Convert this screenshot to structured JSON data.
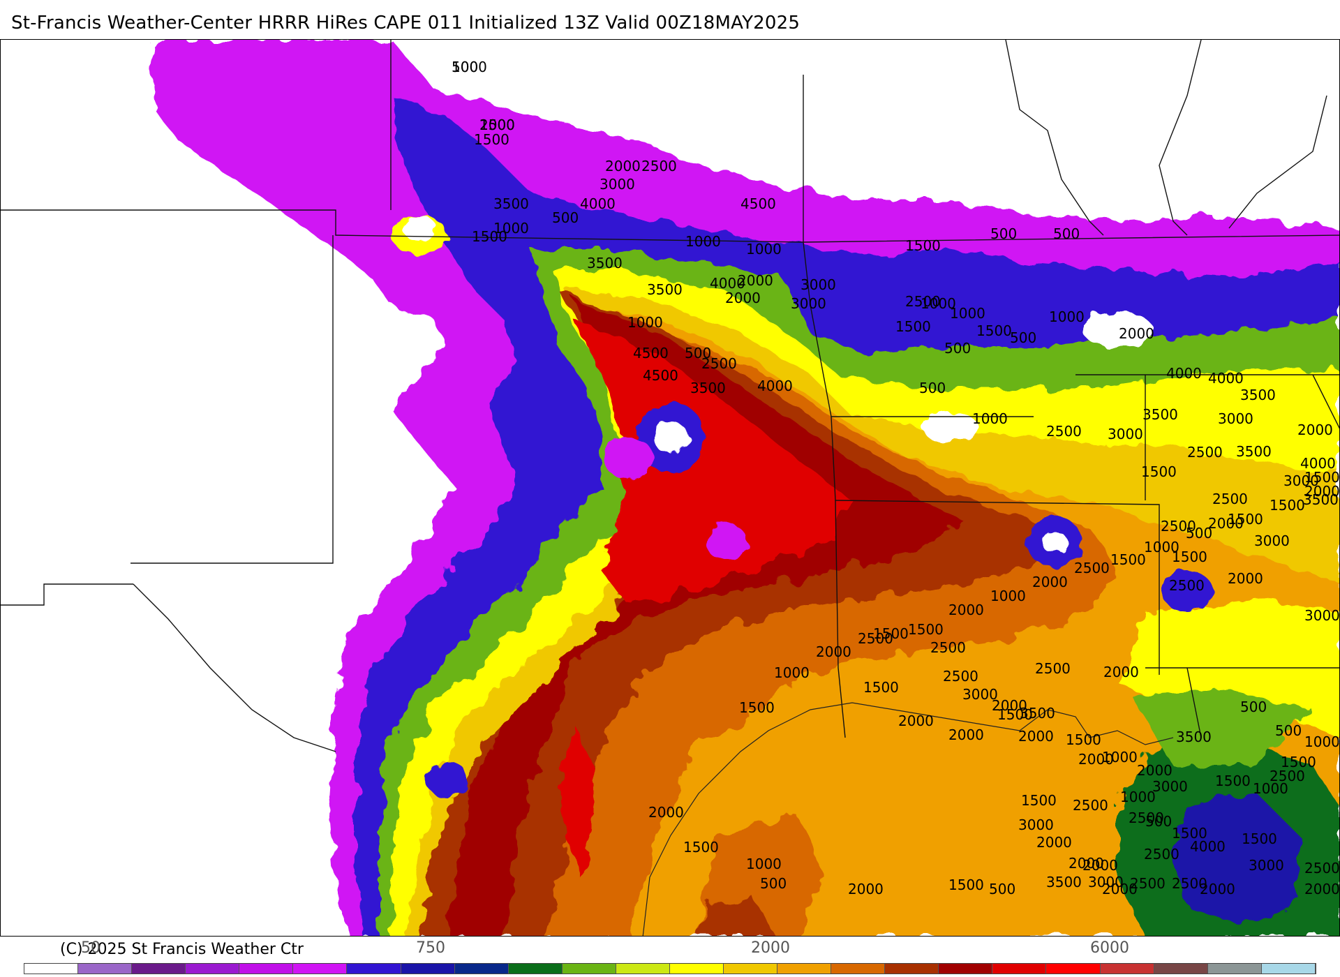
{
  "title": "St-Francis Weather-Center HRRR HiRes CAPE  011 Initialized  13Z Valid 00Z18MAY2025",
  "copyright": "(C) 2025 St Francis Weather Ctr",
  "colorbar": {
    "colors": [
      "#ffffff",
      "#9a66c8",
      "#6a1a8a",
      "#9a1ad0",
      "#c010e8",
      "#d014f4",
      "#3214d2",
      "#1a14a8",
      "#08288a",
      "#0a6e1a",
      "#6ab414",
      "#cce814",
      "#ffff00",
      "#f0c800",
      "#f0a000",
      "#d86800",
      "#a83000",
      "#a00000",
      "#e00000",
      "#ff0000",
      "#c83232",
      "#784646",
      "#8c9696",
      "#a8d8e8"
    ],
    "tick_labels": [
      "50",
      "750",
      "2000",
      "6000"
    ]
  },
  "contour_labels": [
    "500",
    "1000",
    "1500",
    "2000",
    "2500",
    "3000",
    "3500",
    "4000",
    "4500",
    "500",
    "1000",
    "1500",
    "1000",
    "500",
    "500",
    "1000",
    "2000",
    "3000",
    "1500",
    "1000",
    "3500",
    "4000",
    "2500",
    "2000",
    "3500",
    "3000",
    "1000",
    "4500",
    "500",
    "4500",
    "2500",
    "3500",
    "4000",
    "1500",
    "500",
    "1000",
    "1500",
    "500",
    "1000",
    "2000",
    "4000",
    "3500",
    "4000",
    "3500",
    "3000",
    "500",
    "1000",
    "2500",
    "3000",
    "3500",
    "4000",
    "2000",
    "2500",
    "1500",
    "3000",
    "3500",
    "2500",
    "2500",
    "2000",
    "3000",
    "1500",
    "2500",
    "2000",
    "3000",
    "3500",
    "2500",
    "4000",
    "3000",
    "2500",
    "1500",
    "1000",
    "500",
    "500",
    "1000",
    "1500",
    "2000",
    "2500",
    "2000",
    "2000",
    "1500",
    "3000",
    "3500",
    "1500",
    "2000",
    "2500",
    "2500",
    "2000",
    "2000",
    "1500",
    "1000",
    "1500",
    "1500",
    "2000",
    "2000",
    "3000",
    "2000",
    "2500",
    "1000",
    "2000",
    "3000",
    "1500",
    "2500",
    "500",
    "1500",
    "2500",
    "2000",
    "2000",
    "3500",
    "3000",
    "2500",
    "2500",
    "2000",
    "1500",
    "500",
    "2000",
    "500",
    "1000",
    "1500",
    "2000",
    "1500",
    "1000",
    "2000",
    "2500",
    "1500",
    "2000",
    "1000",
    "2000",
    "2500",
    "1500",
    "1000",
    "500",
    "1500",
    "1500",
    "2000",
    "1500",
    "1000",
    "2500"
  ]
}
